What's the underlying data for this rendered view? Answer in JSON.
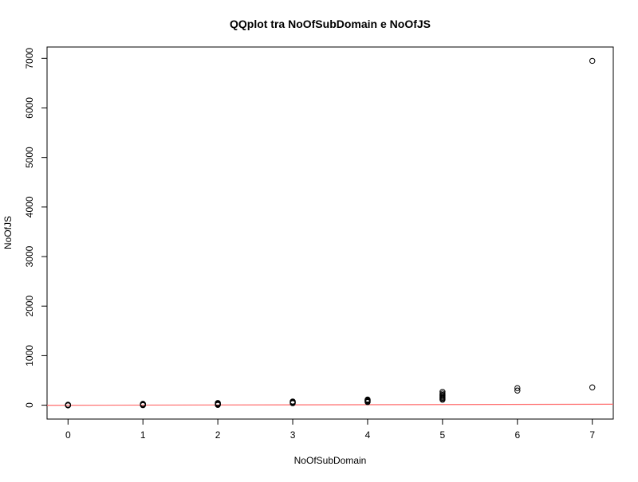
{
  "chart_data": {
    "type": "scatter",
    "title": "QQplot tra NoOfSubDomain e NoOfJS",
    "xlabel": "NoOfSubDomain",
    "ylabel": "NoOfJS",
    "xlim": [
      -0.28,
      7.28
    ],
    "ylim": [
      -280,
      7230
    ],
    "xticks": [
      "0",
      "1",
      "2",
      "3",
      "4",
      "5",
      "6",
      "7"
    ],
    "yticks": [
      "0",
      "1000",
      "2000",
      "3000",
      "4000",
      "5000",
      "6000",
      "7000"
    ],
    "grid": false,
    "point_color": "#000000",
    "reference_line": {
      "color": "#ff6b6b",
      "points": [
        [
          -0.28,
          -2
        ],
        [
          7.28,
          20
        ]
      ]
    },
    "points": [
      [
        0,
        0
      ],
      [
        0,
        5
      ],
      [
        0,
        10
      ],
      [
        0,
        -5
      ],
      [
        1,
        0
      ],
      [
        1,
        5
      ],
      [
        1,
        12
      ],
      [
        1,
        20
      ],
      [
        1,
        28
      ],
      [
        2,
        5
      ],
      [
        2,
        15
      ],
      [
        2,
        25
      ],
      [
        2,
        35
      ],
      [
        2,
        45
      ],
      [
        3,
        40
      ],
      [
        3,
        50
      ],
      [
        3,
        58
      ],
      [
        3,
        66
      ],
      [
        3,
        75
      ],
      [
        4,
        62
      ],
      [
        4,
        72
      ],
      [
        4,
        85
      ],
      [
        4,
        95
      ],
      [
        4,
        105
      ],
      [
        4,
        115
      ],
      [
        5,
        110
      ],
      [
        5,
        130
      ],
      [
        5,
        150
      ],
      [
        5,
        170
      ],
      [
        5,
        190
      ],
      [
        5,
        210
      ],
      [
        5,
        235
      ],
      [
        5,
        270
      ],
      [
        6,
        295
      ],
      [
        6,
        345
      ],
      [
        7,
        360
      ],
      [
        7,
        6950
      ]
    ]
  }
}
